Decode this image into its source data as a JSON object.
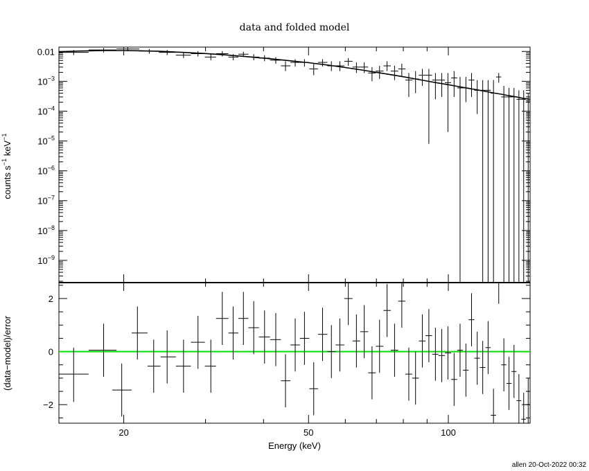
{
  "footer": "allen 20-Oct-2022 00:32",
  "chart_data": [
    {
      "type": "scatter",
      "title": "data and folded model",
      "ylabel_base": "counts s",
      "ylabel_mid": " keV",
      "ylabel_sup": "−1",
      "xscale": "log",
      "yscale": "log",
      "xlim": [
        14.5,
        150
      ],
      "ylim": [
        1.8e-10,
        0.014
      ],
      "yticks": [
        {
          "value": 0.01,
          "label": "0.01"
        },
        {
          "value": 0.001,
          "base": "10",
          "exp": "−3"
        },
        {
          "value": 0.0001,
          "base": "10",
          "exp": "−4"
        },
        {
          "value": 1e-05,
          "base": "10",
          "exp": "−5"
        },
        {
          "value": 1e-06,
          "base": "10",
          "exp": "−6"
        },
        {
          "value": 1e-07,
          "base": "10",
          "exp": "−7"
        },
        {
          "value": 1e-08,
          "base": "10",
          "exp": "−8"
        },
        {
          "value": 1e-09,
          "base": "10",
          "exp": "−9"
        }
      ],
      "model_color": "#000000",
      "data_color": "#000000",
      "points": [
        {
          "x": 15.6,
          "xlo": 14.5,
          "xhi": 16.8,
          "y": 0.0093,
          "ylo": 0.0075,
          "yhi": 0.0112
        },
        {
          "x": 18.1,
          "xlo": 16.8,
          "xhi": 19.3,
          "y": 0.0112,
          "ylo": 0.0093,
          "yhi": 0.0131
        },
        {
          "x": 20.4,
          "xlo": 19.3,
          "xhi": 21.6,
          "y": 0.0121,
          "ylo": 0.0103,
          "yhi": 0.014
        },
        {
          "x": 22.7,
          "xlo": 21.6,
          "xhi": 23.8,
          "y": 0.0103,
          "ylo": 0.0084,
          "yhi": 0.0121
        },
        {
          "x": 24.8,
          "xlo": 23.8,
          "xhi": 25.9,
          "y": 0.0093,
          "ylo": 0.0075,
          "yhi": 0.0112
        },
        {
          "x": 26.9,
          "xlo": 25.9,
          "xhi": 27.9,
          "y": 0.0075,
          "ylo": 0.006,
          "yhi": 0.0093
        },
        {
          "x": 28.9,
          "xlo": 27.9,
          "xhi": 29.9,
          "y": 0.0084,
          "ylo": 0.0068,
          "yhi": 0.0103
        },
        {
          "x": 30.8,
          "xlo": 29.9,
          "xhi": 31.6,
          "y": 0.0065,
          "ylo": 0.0051,
          "yhi": 0.0081
        },
        {
          "x": 32.6,
          "xlo": 31.6,
          "xhi": 33.6,
          "y": 0.0084,
          "ylo": 0.0068,
          "yhi": 0.0103
        },
        {
          "x": 34.4,
          "xlo": 33.6,
          "xhi": 35.3,
          "y": 0.0065,
          "ylo": 0.0051,
          "yhi": 0.0081
        },
        {
          "x": 36.2,
          "xlo": 35.3,
          "xhi": 37.1,
          "y": 0.0081,
          "ylo": 0.0065,
          "yhi": 0.0098
        },
        {
          "x": 38.1,
          "xlo": 37.1,
          "xhi": 39.1,
          "y": 0.0065,
          "ylo": 0.0051,
          "yhi": 0.0081
        },
        {
          "x": 40.2,
          "xlo": 39.1,
          "xhi": 41.3,
          "y": 0.006,
          "ylo": 0.0047,
          "yhi": 0.0075
        },
        {
          "x": 42.5,
          "xlo": 41.3,
          "xhi": 43.6,
          "y": 0.0051,
          "ylo": 0.0039,
          "yhi": 0.0065
        },
        {
          "x": 44.6,
          "xlo": 43.6,
          "xhi": 45.7,
          "y": 0.0033,
          "ylo": 0.0022,
          "yhi": 0.0047
        },
        {
          "x": 46.8,
          "xlo": 45.7,
          "xhi": 47.9,
          "y": 0.0043,
          "ylo": 0.0031,
          "yhi": 0.0055
        },
        {
          "x": 49.0,
          "xlo": 47.9,
          "xhi": 50.2,
          "y": 0.0043,
          "ylo": 0.0031,
          "yhi": 0.0055
        },
        {
          "x": 51.3,
          "xlo": 50.2,
          "xhi": 52.4,
          "y": 0.0026,
          "ylo": 0.0016,
          "yhi": 0.0039
        },
        {
          "x": 53.6,
          "xlo": 52.4,
          "xhi": 54.9,
          "y": 0.0043,
          "ylo": 0.0031,
          "yhi": 0.0055
        },
        {
          "x": 56.0,
          "xlo": 54.9,
          "xhi": 57.2,
          "y": 0.0033,
          "ylo": 0.0022,
          "yhi": 0.0047
        },
        {
          "x": 58.4,
          "xlo": 57.2,
          "xhi": 59.7,
          "y": 0.0033,
          "ylo": 0.0022,
          "yhi": 0.0047
        },
        {
          "x": 60.9,
          "xlo": 59.7,
          "xhi": 62.2,
          "y": 0.0047,
          "ylo": 0.0033,
          "yhi": 0.006
        },
        {
          "x": 63.4,
          "xlo": 62.2,
          "xhi": 64.6,
          "y": 0.003,
          "ylo": 0.0019,
          "yhi": 0.0043
        },
        {
          "x": 65.9,
          "xlo": 64.6,
          "xhi": 67.2,
          "y": 0.003,
          "ylo": 0.0019,
          "yhi": 0.0043
        },
        {
          "x": 68.5,
          "xlo": 67.2,
          "xhi": 69.8,
          "y": 0.0019,
          "ylo": 0.001,
          "yhi": 0.003
        },
        {
          "x": 71.1,
          "xlo": 69.8,
          "xhi": 72.5,
          "y": 0.0022,
          "ylo": 0.0012,
          "yhi": 0.0033
        },
        {
          "x": 73.8,
          "xlo": 72.5,
          "xhi": 75.2,
          "y": 0.0033,
          "ylo": 0.0022,
          "yhi": 0.0047
        },
        {
          "x": 76.6,
          "xlo": 75.2,
          "xhi": 78.0,
          "y": 0.0022,
          "ylo": 0.0011,
          "yhi": 0.0033
        },
        {
          "x": 79.4,
          "xlo": 78.0,
          "xhi": 80.8,
          "y": 0.0026,
          "ylo": 0.0014,
          "yhi": 0.0039
        },
        {
          "x": 82.2,
          "xlo": 80.8,
          "xhi": 83.6,
          "y": 0.0011,
          "ylo": 0.0003,
          "yhi": 0.0019
        },
        {
          "x": 85.0,
          "xlo": 83.6,
          "xhi": 86.4,
          "y": 0.0012,
          "ylo": 0.0004,
          "yhi": 0.0022
        },
        {
          "x": 87.9,
          "xlo": 86.4,
          "xhi": 89.3,
          "y": 0.0016,
          "ylo": 0.0007,
          "yhi": 0.0026
        },
        {
          "x": 90.8,
          "xlo": 89.3,
          "xhi": 92.3,
          "y": 0.0016,
          "ylo": 8e-06,
          "yhi": 0.0026
        },
        {
          "x": 93.8,
          "xlo": 92.3,
          "xhi": 95.2,
          "y": 0.0011,
          "ylo": 0.00025,
          "yhi": 0.0019
        },
        {
          "x": 96.8,
          "xlo": 95.2,
          "xhi": 98.3,
          "y": 0.0011,
          "ylo": 0.0003,
          "yhi": 0.0019
        },
        {
          "x": 99.8,
          "xlo": 98.3,
          "xhi": 101.4,
          "y": 0.0009,
          "ylo": 2e-05,
          "yhi": 0.0019
        },
        {
          "x": 102.9,
          "xlo": 101.4,
          "xhi": 104.5,
          "y": 0.0013,
          "ylo": 0.0003,
          "yhi": 0.0022
        },
        {
          "x": 106.0,
          "xlo": 104.5,
          "xhi": 107.5,
          "y": 0.0006,
          "ylo": 1.8e-10,
          "yhi": 0.0014
        },
        {
          "x": 109.1,
          "xlo": 107.5,
          "xhi": 110.6,
          "y": 0.0006,
          "ylo": 0.0002,
          "yhi": 0.0014
        },
        {
          "x": 112.2,
          "xlo": 110.6,
          "xhi": 113.8,
          "y": 0.0011,
          "ylo": 0.0003,
          "yhi": 0.0019
        },
        {
          "x": 115.4,
          "xlo": 113.8,
          "xhi": 116.9,
          "y": 0.0005,
          "ylo": 8e-05,
          "yhi": 0.0011
        },
        {
          "x": 118.6,
          "xlo": 116.9,
          "xhi": 120.2,
          "y": 0.0005,
          "ylo": 1.8e-10,
          "yhi": 0.0011
        },
        {
          "x": 121.8,
          "xlo": 120.2,
          "xhi": 123.4,
          "y": 0.0005,
          "ylo": 1.8e-10,
          "yhi": 0.0011
        },
        {
          "x": 125.1,
          "xlo": 123.4,
          "xhi": 126.7,
          "y": 0.0004,
          "ylo": 1.8e-10,
          "yhi": 0.0011
        },
        {
          "x": 128.4,
          "xlo": 126.7,
          "xhi": 130.0,
          "y": 0.0014,
          "ylo": 0.0009,
          "yhi": 0.0019
        },
        {
          "x": 131.7,
          "xlo": 130.0,
          "xhi": 133.4,
          "y": 0.0003,
          "ylo": 1.8e-10,
          "yhi": 0.0007
        },
        {
          "x": 135.1,
          "xlo": 133.4,
          "xhi": 136.8,
          "y": 0.0003,
          "ylo": 1.8e-10,
          "yhi": 0.0006
        },
        {
          "x": 138.5,
          "xlo": 136.8,
          "xhi": 140.2,
          "y": 0.0003,
          "ylo": 1.8e-10,
          "yhi": 0.0006
        },
        {
          "x": 141.9,
          "xlo": 140.2,
          "xhi": 143.6,
          "y": 0.00025,
          "ylo": 1.8e-10,
          "yhi": 0.0005
        },
        {
          "x": 145.3,
          "xlo": 143.6,
          "xhi": 147.0,
          "y": 0.00025,
          "ylo": 1.8e-10,
          "yhi": 0.0005
        },
        {
          "x": 148.6,
          "xlo": 147.0,
          "xhi": 150.0,
          "y": 0.00022,
          "ylo": 1.8e-10,
          "yhi": 0.0004
        }
      ],
      "model": {
        "x": [
          14.5,
          16,
          18,
          20,
          22,
          24,
          27,
          30,
          33,
          36,
          40,
          45,
          50,
          55,
          60,
          65,
          70,
          75,
          80,
          85,
          90,
          95,
          100,
          105,
          110,
          115,
          120,
          125,
          130,
          135,
          140,
          145,
          150
        ],
        "y": [
          0.0098,
          0.0103,
          0.0107,
          0.0107,
          0.0105,
          0.0101,
          0.0093,
          0.0085,
          0.0077,
          0.0069,
          0.006,
          0.005,
          0.0042,
          0.0035,
          0.0029,
          0.0024,
          0.002,
          0.00168,
          0.00142,
          0.0012,
          0.00102,
          0.00088,
          0.00077,
          0.00067,
          0.00059,
          0.00052,
          0.00046,
          0.00041,
          0.00037,
          0.00033,
          0.0003,
          0.00027,
          0.00025
        ]
      }
    },
    {
      "type": "scatter",
      "xlabel": "Energy (keV)",
      "ylabel": "(data−model)/error",
      "xscale": "log",
      "xlim": [
        14.5,
        150
      ],
      "ylim": [
        -2.7,
        2.6
      ],
      "xticks": [
        {
          "value": 20,
          "label": "20"
        },
        {
          "value": 50,
          "label": "50"
        },
        {
          "value": 100,
          "label": "100"
        }
      ],
      "yticks": [
        {
          "value": 2,
          "label": "2"
        },
        {
          "value": 0,
          "label": "0"
        },
        {
          "value": -2,
          "label": "−2"
        }
      ],
      "zero_line_color": "#00e000",
      "zero_line_value": 0,
      "points": [
        {
          "x": 15.6,
          "xlo": 14.5,
          "xhi": 16.8,
          "y": -0.85,
          "ylo": -1.9,
          "yhi": 0.15
        },
        {
          "x": 18.1,
          "xlo": 16.8,
          "xhi": 19.3,
          "y": 0.05,
          "ylo": -0.95,
          "yhi": 1.05
        },
        {
          "x": 19.8,
          "xlo": 18.9,
          "xhi": 20.8,
          "y": -1.45,
          "ylo": -2.45,
          "yhi": -0.45
        },
        {
          "x": 21.4,
          "xlo": 20.8,
          "xhi": 22.5,
          "y": 0.7,
          "ylo": -0.3,
          "yhi": 1.7
        },
        {
          "x": 23.2,
          "xlo": 22.5,
          "xhi": 24.0,
          "y": -0.55,
          "ylo": -1.55,
          "yhi": 0.45
        },
        {
          "x": 24.8,
          "xlo": 24.0,
          "xhi": 25.9,
          "y": -0.2,
          "ylo": -1.2,
          "yhi": 0.8
        },
        {
          "x": 26.9,
          "xlo": 25.9,
          "xhi": 27.9,
          "y": -0.55,
          "ylo": -1.55,
          "yhi": 0.45
        },
        {
          "x": 28.9,
          "xlo": 27.9,
          "xhi": 29.9,
          "y": 0.35,
          "ylo": -0.65,
          "yhi": 1.35
        },
        {
          "x": 30.8,
          "xlo": 29.9,
          "xhi": 31.6,
          "y": -0.55,
          "ylo": -1.55,
          "yhi": 0.45
        },
        {
          "x": 32.6,
          "xlo": 31.6,
          "xhi": 33.6,
          "y": 1.25,
          "ylo": 0.25,
          "yhi": 2.25
        },
        {
          "x": 34.4,
          "xlo": 33.6,
          "xhi": 35.3,
          "y": 0.7,
          "ylo": -0.3,
          "yhi": 1.7
        },
        {
          "x": 36.2,
          "xlo": 35.3,
          "xhi": 37.1,
          "y": 1.25,
          "ylo": 0.25,
          "yhi": 2.25
        },
        {
          "x": 38.1,
          "xlo": 37.1,
          "xhi": 39.1,
          "y": 0.9,
          "ylo": -0.1,
          "yhi": 1.9
        },
        {
          "x": 40.2,
          "xlo": 39.1,
          "xhi": 41.3,
          "y": 0.55,
          "ylo": -0.45,
          "yhi": 1.55
        },
        {
          "x": 42.5,
          "xlo": 41.3,
          "xhi": 43.6,
          "y": 0.45,
          "ylo": -0.55,
          "yhi": 1.45
        },
        {
          "x": 44.6,
          "xlo": 43.6,
          "xhi": 45.7,
          "y": -1.1,
          "ylo": -2.1,
          "yhi": -0.1
        },
        {
          "x": 46.8,
          "xlo": 45.7,
          "xhi": 47.9,
          "y": 0.25,
          "ylo": -0.75,
          "yhi": 1.25
        },
        {
          "x": 49.0,
          "xlo": 47.9,
          "xhi": 50.2,
          "y": 0.5,
          "ylo": -0.5,
          "yhi": 1.5
        },
        {
          "x": 51.3,
          "xlo": 50.2,
          "xhi": 52.4,
          "y": -1.4,
          "ylo": -2.4,
          "yhi": -0.4
        },
        {
          "x": 53.6,
          "xlo": 52.4,
          "xhi": 54.9,
          "y": 0.65,
          "ylo": -0.35,
          "yhi": 1.65
        },
        {
          "x": 56.0,
          "xlo": 54.9,
          "xhi": 57.2,
          "y": 0.0,
          "ylo": -1.0,
          "yhi": 1.0
        },
        {
          "x": 58.4,
          "xlo": 57.2,
          "xhi": 59.7,
          "y": 0.25,
          "ylo": -0.75,
          "yhi": 1.25
        },
        {
          "x": 60.9,
          "xlo": 59.7,
          "xhi": 62.2,
          "y": 2.0,
          "ylo": 1.0,
          "yhi": 2.6
        },
        {
          "x": 63.4,
          "xlo": 62.2,
          "xhi": 64.6,
          "y": 0.4,
          "ylo": -0.6,
          "yhi": 1.4
        },
        {
          "x": 65.9,
          "xlo": 64.6,
          "xhi": 67.2,
          "y": 0.75,
          "ylo": -0.25,
          "yhi": 1.75
        },
        {
          "x": 68.5,
          "xlo": 67.2,
          "xhi": 69.8,
          "y": -0.8,
          "ylo": -1.8,
          "yhi": 0.2
        },
        {
          "x": 71.1,
          "xlo": 69.8,
          "xhi": 72.5,
          "y": 0.2,
          "ylo": -0.8,
          "yhi": 1.2
        },
        {
          "x": 73.8,
          "xlo": 72.5,
          "xhi": 75.2,
          "y": 1.55,
          "ylo": 0.55,
          "yhi": 2.55
        },
        {
          "x": 76.6,
          "xlo": 75.2,
          "xhi": 78.0,
          "y": 0.05,
          "ylo": -0.95,
          "yhi": 1.05
        },
        {
          "x": 79.4,
          "xlo": 78.0,
          "xhi": 80.8,
          "y": 1.9,
          "ylo": 0.9,
          "yhi": 2.6
        },
        {
          "x": 82.2,
          "xlo": 80.8,
          "xhi": 83.6,
          "y": -0.85,
          "ylo": -1.85,
          "yhi": 0.15
        },
        {
          "x": 85.0,
          "xlo": 83.6,
          "xhi": 86.4,
          "y": -1.0,
          "ylo": -2.0,
          "yhi": 0.0
        },
        {
          "x": 87.9,
          "xlo": 86.4,
          "xhi": 89.3,
          "y": 0.4,
          "ylo": -0.6,
          "yhi": 1.4
        },
        {
          "x": 90.8,
          "xlo": 89.3,
          "xhi": 92.3,
          "y": 0.6,
          "ylo": -0.4,
          "yhi": 1.6
        },
        {
          "x": 93.8,
          "xlo": 92.3,
          "xhi": 95.2,
          "y": -0.1,
          "ylo": -1.1,
          "yhi": 0.9
        },
        {
          "x": 96.8,
          "xlo": 95.2,
          "xhi": 98.3,
          "y": -0.15,
          "ylo": -1.15,
          "yhi": 0.85
        },
        {
          "x": 99.8,
          "xlo": 98.3,
          "xhi": 101.4,
          "y": -0.05,
          "ylo": -1.05,
          "yhi": 0.95
        },
        {
          "x": 102.9,
          "xlo": 101.4,
          "xhi": 104.5,
          "y": -1.05,
          "ylo": -2.05,
          "yhi": -0.05
        },
        {
          "x": 106.0,
          "xlo": 104.5,
          "xhi": 107.5,
          "y": 0.05,
          "ylo": -0.95,
          "yhi": 1.05
        },
        {
          "x": 109.1,
          "xlo": 107.5,
          "xhi": 110.6,
          "y": -0.7,
          "ylo": -1.7,
          "yhi": 0.3
        },
        {
          "x": 112.2,
          "xlo": 110.6,
          "xhi": 113.8,
          "y": 1.2,
          "ylo": 0.2,
          "yhi": 2.2
        },
        {
          "x": 115.4,
          "xlo": 113.8,
          "xhi": 116.9,
          "y": -0.25,
          "ylo": -1.25,
          "yhi": 0.75
        },
        {
          "x": 118.6,
          "xlo": 116.9,
          "xhi": 120.2,
          "y": -0.6,
          "ylo": -1.6,
          "yhi": 0.4
        },
        {
          "x": 121.8,
          "xlo": 120.2,
          "xhi": 123.4,
          "y": 0.15,
          "ylo": -0.85,
          "yhi": 1.15
        },
        {
          "x": 125.1,
          "xlo": 123.4,
          "xhi": 126.7,
          "y": -2.4,
          "ylo": -2.7,
          "yhi": -1.4
        },
        {
          "x": 128.4,
          "xlo": 126.7,
          "xhi": 130.0,
          "y": 2.6,
          "ylo": 1.8,
          "yhi": 2.6
        },
        {
          "x": 131.7,
          "xlo": 130.0,
          "xhi": 133.4,
          "y": -0.5,
          "ylo": -1.5,
          "yhi": 0.5
        },
        {
          "x": 135.1,
          "xlo": 133.4,
          "xhi": 136.8,
          "y": -1.2,
          "ylo": -2.2,
          "yhi": -0.2
        },
        {
          "x": 138.5,
          "xlo": 136.8,
          "xhi": 140.2,
          "y": -0.75,
          "ylo": -1.75,
          "yhi": 0.25
        },
        {
          "x": 141.9,
          "xlo": 140.2,
          "xhi": 143.6,
          "y": -1.85,
          "ylo": -2.7,
          "yhi": -0.85
        },
        {
          "x": 145.3,
          "xlo": 143.6,
          "xhi": 147.0,
          "y": -2.55,
          "ylo": -2.7,
          "yhi": -1.55
        },
        {
          "x": 148.6,
          "xlo": 147.0,
          "xhi": 150.0,
          "y": -2.0,
          "ylo": -2.7,
          "yhi": -1.0
        }
      ]
    }
  ]
}
